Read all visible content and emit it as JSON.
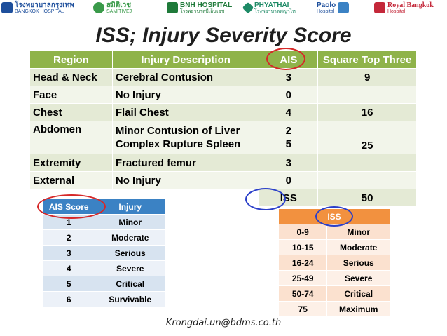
{
  "logos": [
    {
      "name": "bangkok-hospital-logo",
      "line1": "โรงพยาบาลกรุงเทพ",
      "line2": "BANGKOK HOSPITAL",
      "color": "#1e4f9c"
    },
    {
      "name": "samitivej-logo",
      "line1": "สมิติเวช",
      "line2": "SAMITIVEJ",
      "color": "#3a9a4a"
    },
    {
      "name": "bnh-hospital-logo",
      "line1": "BNH HOSPITAL",
      "line2": "โรงพยาบาลบีเอ็นเอช",
      "color": "#1f7a3a"
    },
    {
      "name": "phyathai-logo",
      "line1": "PHYATHAI",
      "line2": "โรงพยาบาลพญาไท",
      "color": "#1e8a66"
    },
    {
      "name": "paolo-hospital-logo",
      "line1": "Paolo",
      "line2": "Hospital",
      "color": "#1e4f9c"
    },
    {
      "name": "royal-bangkok-logo",
      "line1": "Royal Bangkok",
      "line2": "Hospital",
      "color": "#c4283a"
    }
  ],
  "title": "ISS; Injury Severity Score",
  "main_table": {
    "headers": [
      "Region",
      "Injury Description",
      "AIS",
      "Square Top Three"
    ],
    "rows": [
      {
        "region": "Head & Neck",
        "desc": [
          "Cerebral Contusion"
        ],
        "ais": [
          "3"
        ],
        "square": "9"
      },
      {
        "region": "Face",
        "desc": [
          "No Injury"
        ],
        "ais": [
          "0"
        ],
        "square": ""
      },
      {
        "region": "Chest",
        "desc": [
          "Flail Chest"
        ],
        "ais": [
          "4"
        ],
        "square": "16"
      },
      {
        "region": "Abdomen",
        "desc": [
          "Minor Contusion of Liver",
          "Complex Rupture Spleen"
        ],
        "ais": [
          "2",
          "5"
        ],
        "square": "25"
      },
      {
        "region": "Extremity",
        "desc": [
          "Fractured femur"
        ],
        "ais": [
          "3"
        ],
        "square": ""
      },
      {
        "region": "External",
        "desc": [
          "No Injury"
        ],
        "ais": [
          "0"
        ],
        "square": ""
      }
    ],
    "total_label": "ISS",
    "total_value": "50"
  },
  "ais_table": {
    "headers": [
      "AIS Score",
      "Injury"
    ],
    "rows": [
      [
        "1",
        "Minor"
      ],
      [
        "2",
        "Moderate"
      ],
      [
        "3",
        "Serious"
      ],
      [
        "4",
        "Severe"
      ],
      [
        "5",
        "Critical"
      ],
      [
        "6",
        "Survivable"
      ]
    ]
  },
  "iss_table": {
    "header": "ISS",
    "rows": [
      [
        "0-9",
        "Minor"
      ],
      [
        "10-15",
        "Moderate"
      ],
      [
        "16-24",
        "Serious"
      ],
      [
        "25-49",
        "Severe"
      ],
      [
        "50-74",
        "Critical"
      ],
      [
        "75",
        "Maximum"
      ]
    ]
  },
  "email": "Krongdai.un@bdms.co.th",
  "colors": {
    "main_header": "#8fb34a",
    "ais_header": "#3b82c4",
    "iss_header": "#f2913f",
    "ring_red": "#d62828",
    "ring_blue": "#2a3fc9"
  }
}
